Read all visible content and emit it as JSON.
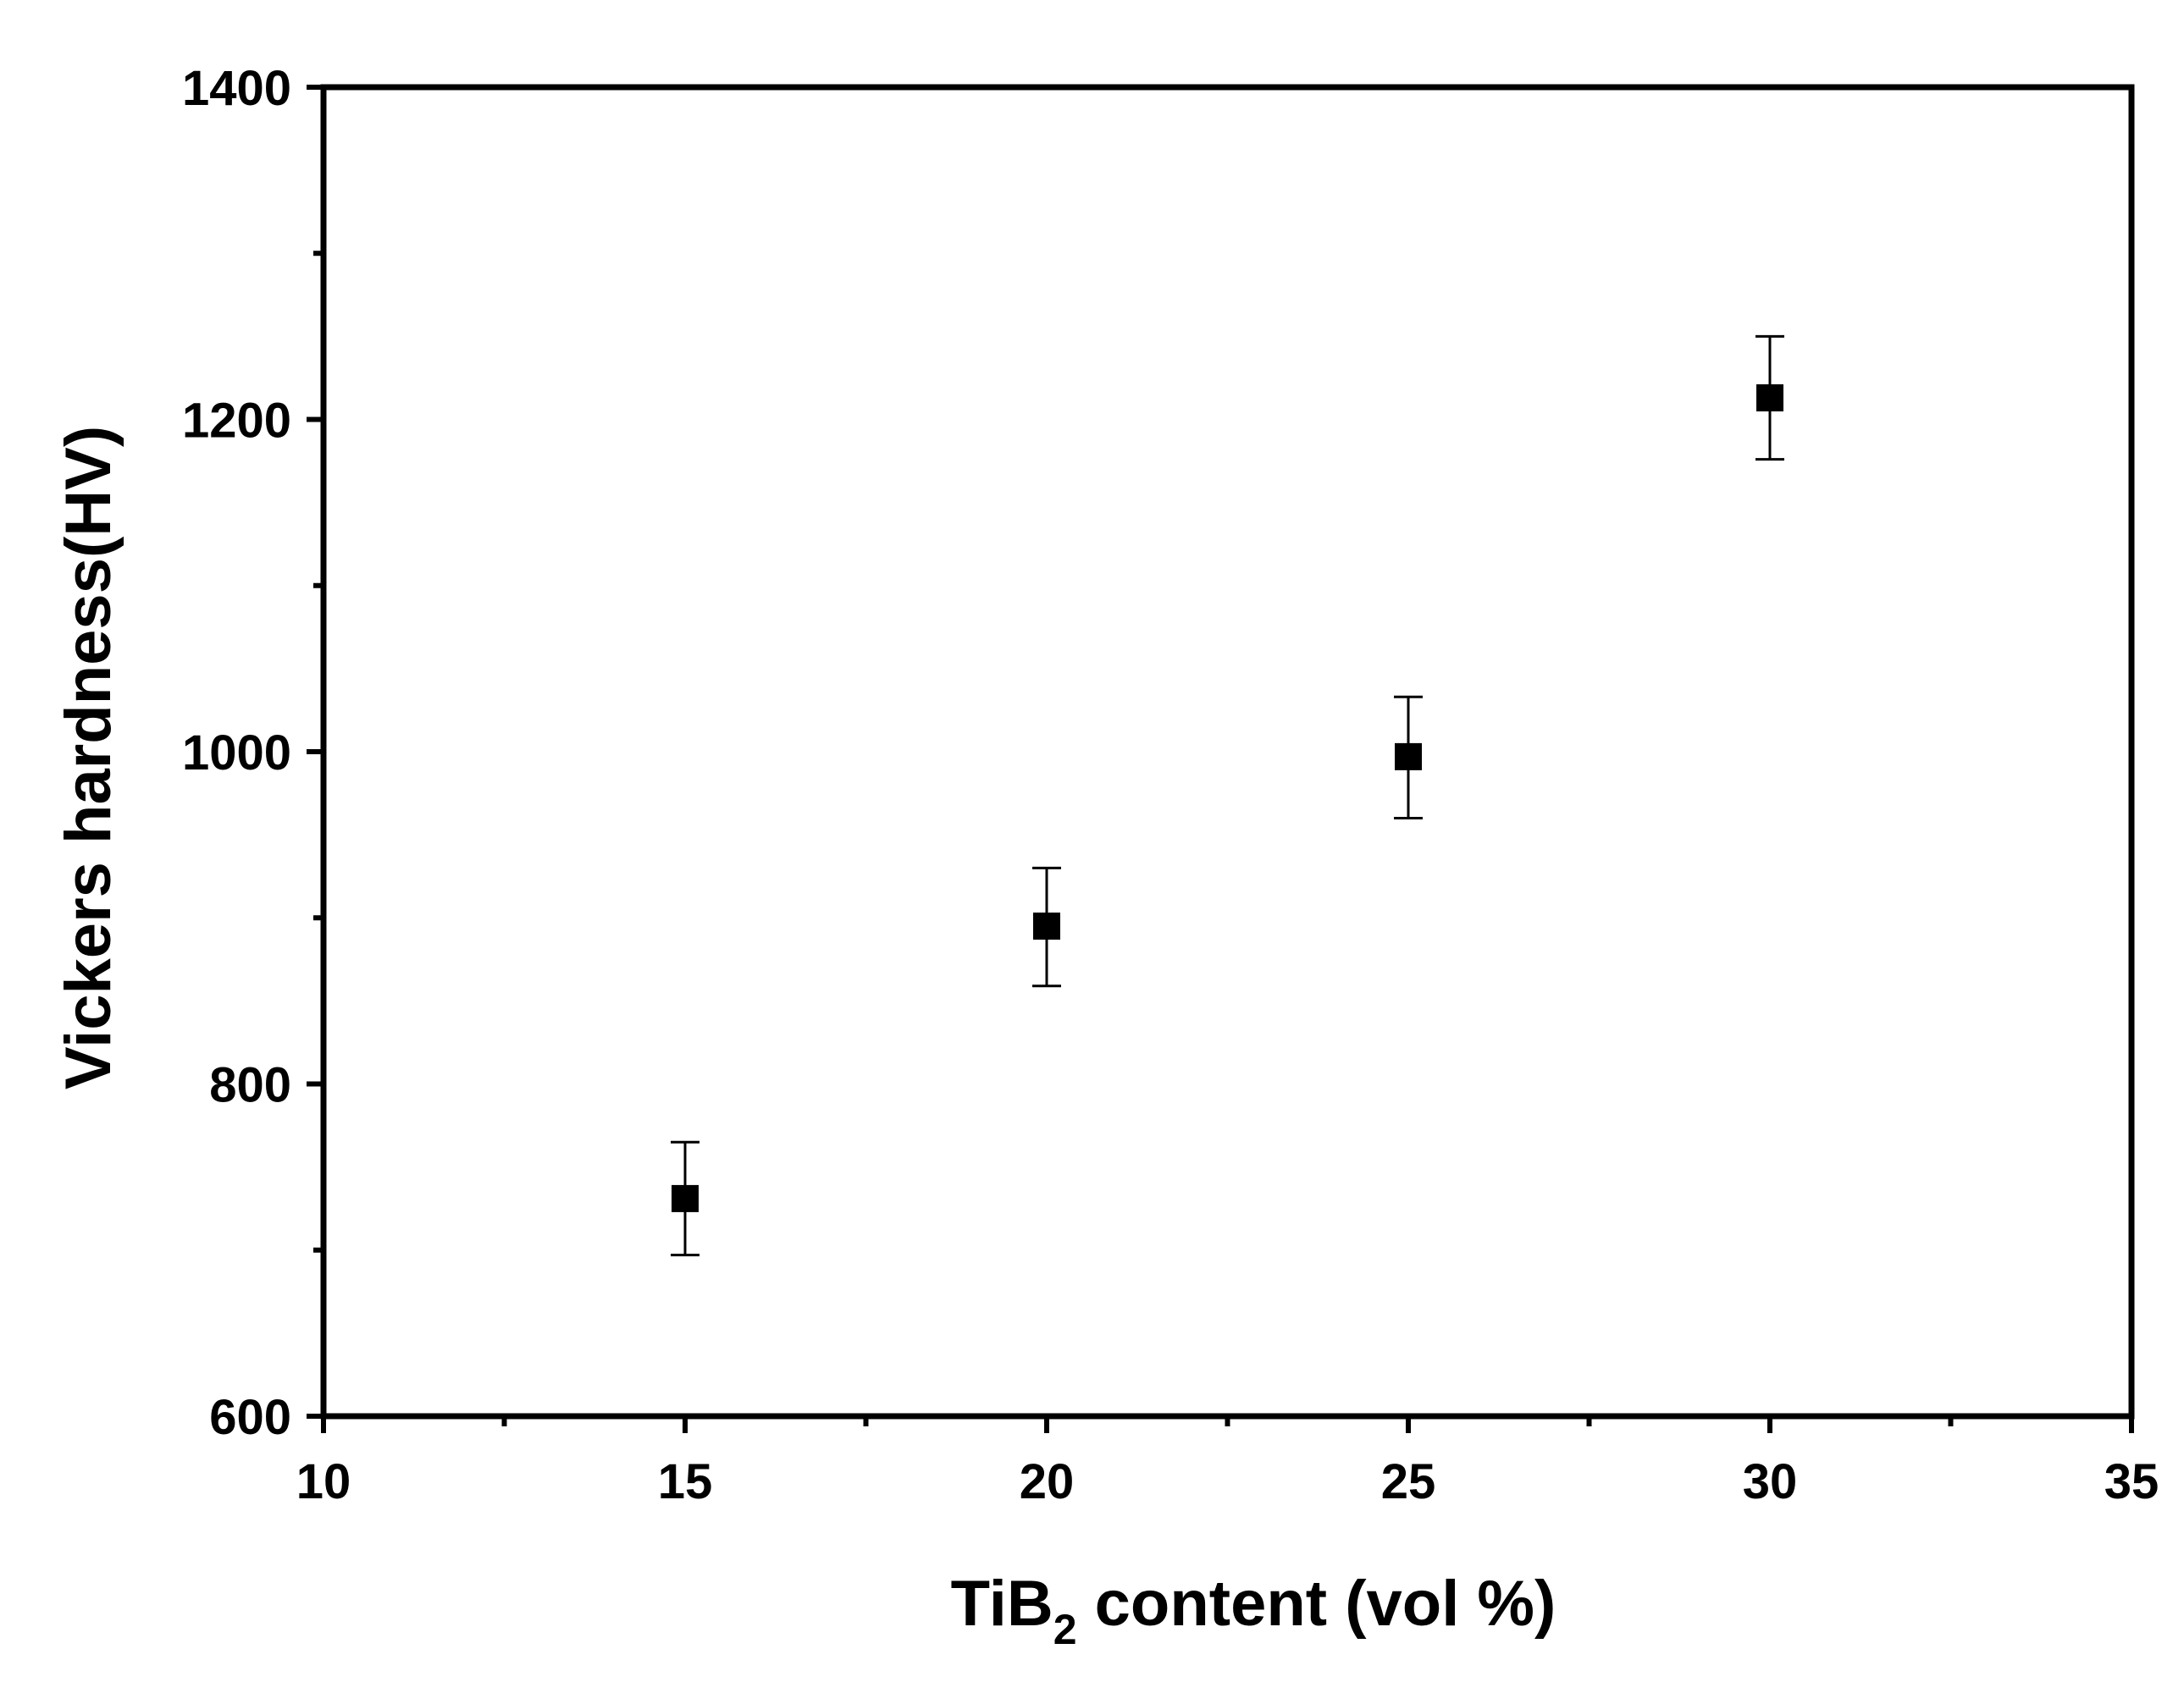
{
  "chart_data": {
    "type": "scatter",
    "xlabel": {
      "prefix": "TiB",
      "subscript": "2",
      "suffix": " content  (vol %)"
    },
    "ylabel": "Vickers hardness(HV)",
    "xlim": [
      10,
      35
    ],
    "ylim": [
      600,
      1400
    ],
    "x_ticks": [
      10,
      15,
      20,
      25,
      30,
      35
    ],
    "x_tick_labels": [
      "10",
      "15",
      "20",
      "25",
      "30",
      "35"
    ],
    "x_minor_ticks": [
      12.5,
      17.5,
      22.5,
      27.5,
      32.5
    ],
    "y_ticks": [
      600,
      800,
      1000,
      1200,
      1400
    ],
    "y_tick_labels": [
      "600",
      "800",
      "1000",
      "1200",
      "1400"
    ],
    "y_minor_ticks": [
      700,
      900,
      1100,
      1300
    ],
    "grid": false,
    "legend": "none",
    "marker": "square",
    "color": "#000000",
    "series": [
      {
        "x": [
          15,
          20,
          25,
          30
        ],
        "y": [
          731,
          895,
          997,
          1213
        ],
        "error_low": [
          697,
          859,
          960,
          1176
        ],
        "error_high": [
          765,
          930,
          1033,
          1250
        ]
      }
    ]
  }
}
